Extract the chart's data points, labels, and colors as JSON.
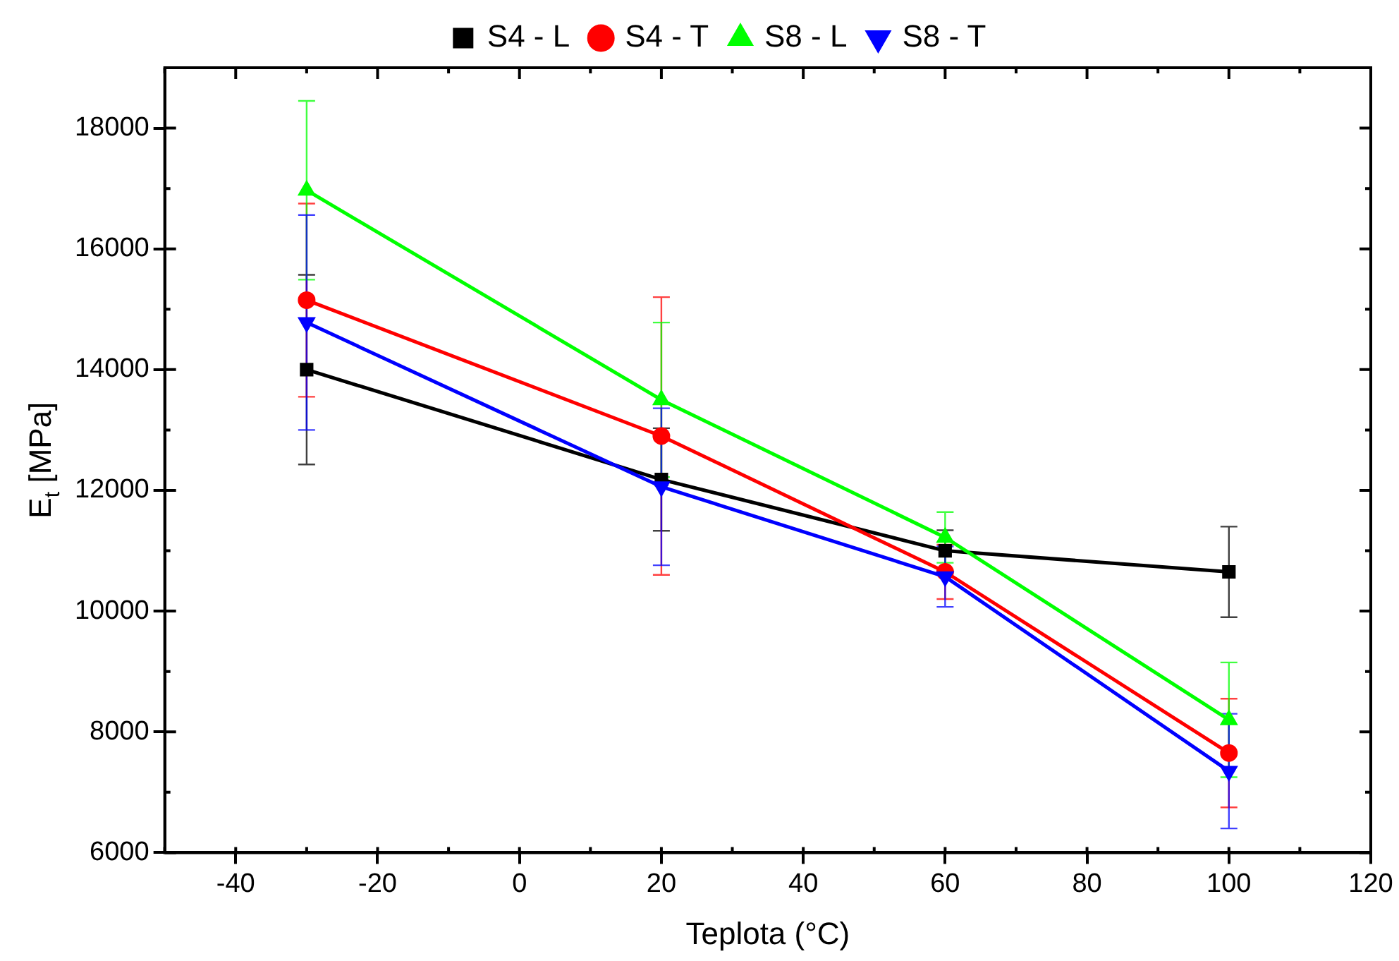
{
  "chart_data": {
    "type": "line",
    "xlabel": "Teplota (°C)",
    "ylabel": "E$_{t}$ [MPa]",
    "x": [
      -30,
      20,
      60,
      100
    ],
    "series": [
      {
        "name": "S4 - L",
        "color": "#000000",
        "marker": "square",
        "values": [
          14000,
          12180,
          11000,
          10650
        ],
        "errors": [
          1570,
          850,
          340,
          750
        ]
      },
      {
        "name": "S4 - T",
        "color": "#ff0000",
        "marker": "circle",
        "values": [
          15150,
          12900,
          10650,
          7650
        ],
        "errors": [
          1600,
          2300,
          450,
          900
        ]
      },
      {
        "name": "S8 - L",
        "color": "#00ff00",
        "marker": "triangle",
        "values": [
          16970,
          13500,
          11220,
          8200
        ],
        "errors": [
          1480,
          1280,
          420,
          950
        ]
      },
      {
        "name": "S8 - T",
        "color": "#0000ff",
        "marker": "triangle-down",
        "values": [
          14780,
          12060,
          10570,
          7350
        ],
        "errors": [
          1780,
          1300,
          500,
          950
        ]
      }
    ],
    "xlim": [
      -50,
      120
    ],
    "xticks": [
      -40,
      -20,
      0,
      20,
      40,
      60,
      80,
      100,
      120
    ],
    "ylim": [
      6000,
      19000
    ],
    "yticks": [
      6000,
      8000,
      10000,
      12000,
      14000,
      16000,
      18000
    ],
    "grid": false,
    "legend": "top",
    "line_style": "solid"
  }
}
